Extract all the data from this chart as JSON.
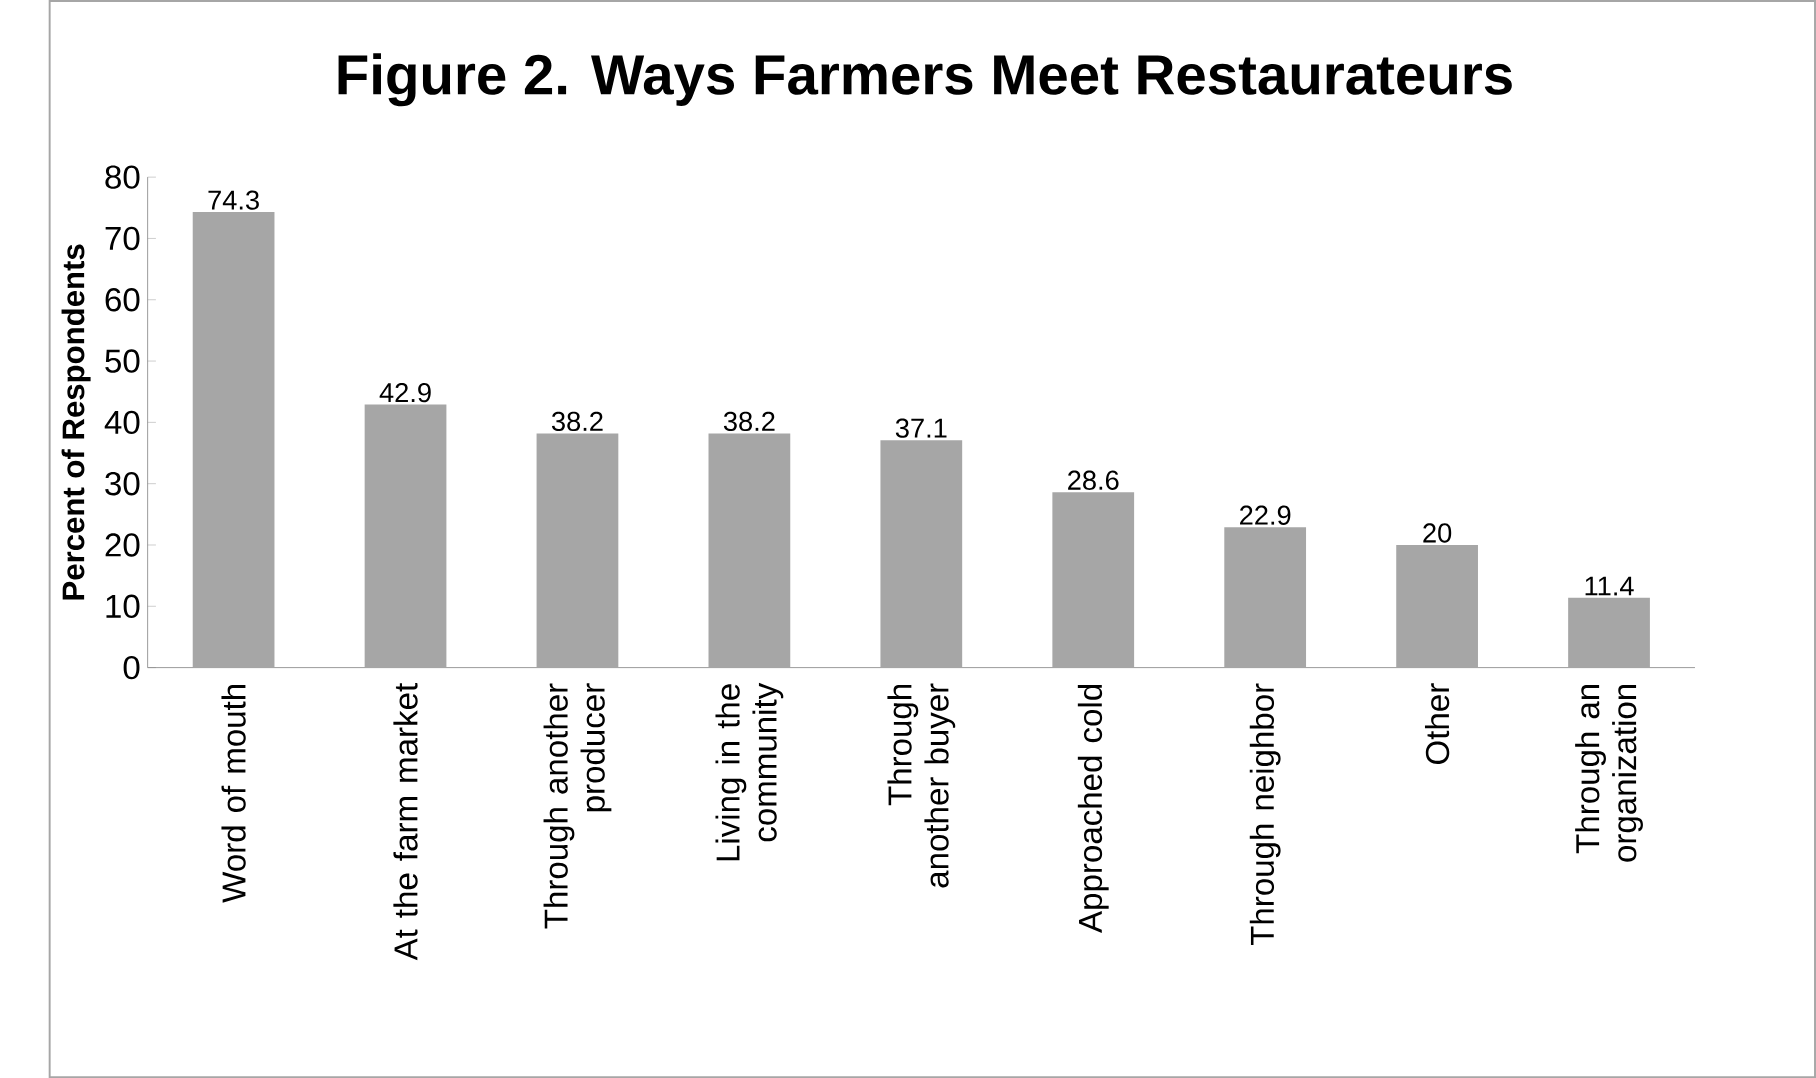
{
  "chart_data": {
    "type": "bar",
    "title": "Figure 2. Ways Farmers Meet Restaurateurs",
    "ylabel": "Percent of Respondents",
    "categories": [
      "Word of mouth",
      "At the farm market",
      "Through another producer",
      "Living in the community",
      "Through another buyer",
      "Approached cold",
      "Through neighbor",
      "Other",
      "Through an organization"
    ],
    "values": [
      74.3,
      42.9,
      38.2,
      38.2,
      37.1,
      28.6,
      22.9,
      20,
      11.4
    ],
    "color": "#a6a6a6",
    "ylim": [
      0,
      80
    ],
    "yticks": [
      0,
      10,
      20,
      30,
      40,
      50,
      60,
      70,
      80
    ],
    "data_labels": true
  }
}
